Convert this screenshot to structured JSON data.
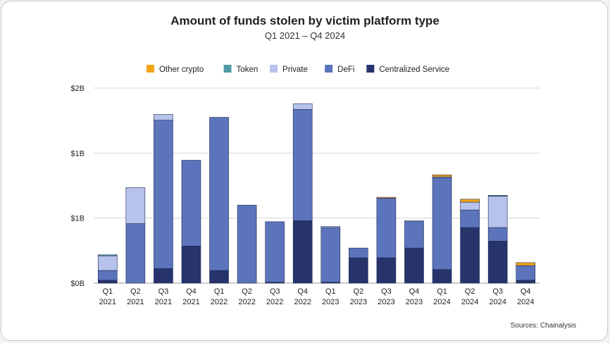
{
  "chart_data": {
    "type": "bar",
    "stacked": true,
    "title": "Amount of funds stolen by victim platform type",
    "subtitle": "Q1 2021 – Q4 2024",
    "source": "Sources: Chainalysis",
    "y_tick_labels": [
      "$0B",
      "$1B",
      "$1B",
      "$2B"
    ],
    "ylim": [
      0,
      2
    ],
    "grid": true,
    "legend_position": "top",
    "categories": [
      {
        "q": "Q1",
        "y": "2021"
      },
      {
        "q": "Q2",
        "y": "2021"
      },
      {
        "q": "Q3",
        "y": "2021"
      },
      {
        "q": "Q4",
        "y": "2021"
      },
      {
        "q": "Q1",
        "y": "2022"
      },
      {
        "q": "Q2",
        "y": "2022"
      },
      {
        "q": "Q3",
        "y": "2022"
      },
      {
        "q": "Q4",
        "y": "2022"
      },
      {
        "q": "Q1",
        "y": "2023"
      },
      {
        "q": "Q2",
        "y": "2023"
      },
      {
        "q": "Q3",
        "y": "2023"
      },
      {
        "q": "Q4",
        "y": "2023"
      },
      {
        "q": "Q1",
        "y": "2024"
      },
      {
        "q": "Q2",
        "y": "2024"
      },
      {
        "q": "Q3",
        "y": "2024"
      },
      {
        "q": "Q4",
        "y": "2024"
      }
    ],
    "series": [
      {
        "name": "Centralized Service",
        "color": "#27336b",
        "values": [
          0.03,
          0.0,
          0.15,
          0.38,
          0.13,
          0.0,
          0.01,
          0.64,
          0.01,
          0.26,
          0.26,
          0.36,
          0.14,
          0.57,
          0.43,
          0.03
        ]
      },
      {
        "name": "DeFi",
        "color": "#5b74bb",
        "values": [
          0.1,
          0.61,
          1.52,
          0.88,
          1.57,
          0.8,
          0.62,
          1.14,
          0.56,
          0.1,
          0.61,
          0.27,
          0.94,
          0.18,
          0.14,
          0.15
        ]
      },
      {
        "name": "Private",
        "color": "#b7c3ea",
        "values": [
          0.15,
          0.37,
          0.06,
          0.0,
          0.0,
          0.0,
          0.0,
          0.06,
          0.01,
          0.0,
          0.0,
          0.01,
          0.01,
          0.08,
          0.32,
          0.0
        ]
      },
      {
        "name": "Token",
        "color": "#4e9aa6",
        "values": [
          0.01,
          0.0,
          0.0,
          0.0,
          0.0,
          0.0,
          0.0,
          0.0,
          0.0,
          0.0,
          0.0,
          0.0,
          0.0,
          0.0,
          0.01,
          0.0
        ]
      },
      {
        "name": "Other crypto",
        "color": "#f2a516",
        "values": [
          0.0,
          0.0,
          0.0,
          0.0,
          0.0,
          0.0,
          0.0,
          0.0,
          0.0,
          0.0,
          0.01,
          0.0,
          0.02,
          0.03,
          0.0,
          0.03
        ]
      }
    ],
    "legend_order": [
      "Other crypto",
      "Token",
      "Private",
      "DeFi",
      "Centralized Service"
    ]
  }
}
